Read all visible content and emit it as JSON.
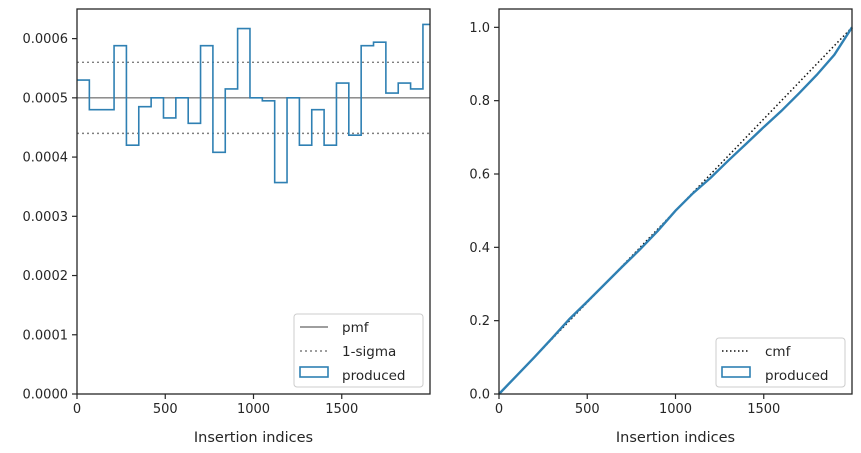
{
  "colors": {
    "produced": "#2f80b3",
    "pmf": "#7f7f7f",
    "sigma": "#7f7f7f",
    "cmf": "#111111",
    "axes": "#262626",
    "legend_border": "#cccccc"
  },
  "chart_data": [
    {
      "type": "histogram",
      "xlabel": "Insertion indices",
      "ylabel": "",
      "xlim": [
        0,
        2000
      ],
      "ylim": [
        0,
        0.00065
      ],
      "xticks": [
        0,
        500,
        1000,
        1500
      ],
      "xtick_labels": [
        "0",
        "500",
        "1000",
        "1500"
      ],
      "yticks": [
        0,
        0.0001,
        0.0002,
        0.0003,
        0.0004,
        0.0005,
        0.0006
      ],
      "ytick_labels": [
        "0.0000",
        "0.0001",
        "0.0002",
        "0.0003",
        "0.0004",
        "0.0005",
        "0.0006"
      ],
      "bin_edges": [
        0,
        70,
        140,
        210,
        280,
        350,
        420,
        490,
        560,
        630,
        700,
        770,
        840,
        910,
        980,
        1050,
        1120,
        1190,
        1260,
        1330,
        1400,
        1470,
        1540,
        1610,
        1680,
        1750,
        1820,
        1890,
        1960,
        2000
      ],
      "produced_values": [
        0.00053,
        0.00048,
        0.00048,
        0.000588,
        0.00042,
        0.000485,
        0.0005,
        0.000466,
        0.0005,
        0.000457,
        0.000588,
        0.000408,
        0.000515,
        0.000617,
        0.0005,
        0.000495,
        0.000357,
        0.0005,
        0.00042,
        0.00048,
        0.00042,
        0.000525,
        0.000437,
        0.000588,
        0.000594,
        0.000508,
        0.000525,
        0.000515,
        0.000624
      ],
      "pmf": 0.0005,
      "sigma_band": [
        0.00044,
        0.00056
      ],
      "legend": {
        "position": "lower right",
        "entries": [
          "pmf",
          "1-sigma",
          "produced"
        ]
      }
    },
    {
      "type": "line",
      "xlabel": "Insertion indices",
      "ylabel": "",
      "xlim": [
        0,
        2000
      ],
      "ylim": [
        0,
        1.05
      ],
      "xticks": [
        0,
        500,
        1000,
        1500
      ],
      "xtick_labels": [
        "0",
        "500",
        "1000",
        "1500"
      ],
      "yticks": [
        0,
        0.2,
        0.4,
        0.6,
        0.8,
        1.0
      ],
      "ytick_labels": [
        "0.0",
        "0.2",
        "0.4",
        "0.6",
        "0.8",
        "1.0"
      ],
      "cmf": {
        "x": [
          0,
          2000
        ],
        "y": [
          0,
          1.0
        ]
      },
      "produced": {
        "x": [
          0,
          100,
          200,
          300,
          400,
          500,
          600,
          700,
          800,
          900,
          1000,
          1100,
          1200,
          1300,
          1400,
          1500,
          1600,
          1700,
          1800,
          1900,
          2000
        ],
        "y": [
          0,
          0.05,
          0.1,
          0.152,
          0.205,
          0.252,
          0.3,
          0.348,
          0.395,
          0.445,
          0.5,
          0.548,
          0.59,
          0.637,
          0.682,
          0.728,
          0.772,
          0.82,
          0.87,
          0.925,
          1.0
        ]
      },
      "legend": {
        "position": "lower right",
        "entries": [
          "cmf",
          "produced"
        ]
      }
    }
  ]
}
